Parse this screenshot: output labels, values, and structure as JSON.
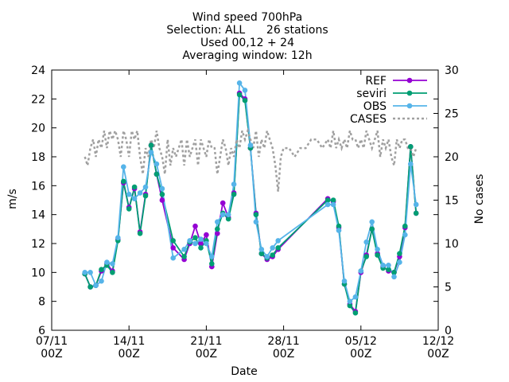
{
  "chart_data": {
    "type": "line",
    "title_lines": [
      "Wind speed 700hPa",
      "Selection: ALL      26 stations",
      "Used 00,12 + 24",
      "Averaging window: 12h"
    ],
    "xlabel": "Date",
    "ylabel": "m/s",
    "y2label": "No cases",
    "xlim": [
      "2011-11-07 00:00",
      "2011-12-12 00:00"
    ],
    "ylim": [
      6,
      24
    ],
    "y2lim": [
      0,
      30
    ],
    "x_ticks": [
      {
        "at": "2011-11-07 00:00",
        "line1": "07/11",
        "line2": "00Z"
      },
      {
        "at": "2011-11-14 00:00",
        "line1": "14/11",
        "line2": "00Z"
      },
      {
        "at": "2011-11-21 00:00",
        "line1": "21/11",
        "line2": "00Z"
      },
      {
        "at": "2011-11-28 00:00",
        "line1": "28/11",
        "line2": "00Z"
      },
      {
        "at": "2011-12-05 00:00",
        "line1": "05/12",
        "line2": "00Z"
      },
      {
        "at": "2011-12-12 00:00",
        "line1": "12/12",
        "line2": "00Z"
      }
    ],
    "y_ticks": [
      "6",
      "8",
      "10",
      "12",
      "14",
      "16",
      "18",
      "20",
      "22",
      "24"
    ],
    "y2_ticks": [
      "0",
      "5",
      "10",
      "15",
      "20",
      "25",
      "30"
    ],
    "legend_position": "top-right",
    "colors": {
      "REF": "#9400d3",
      "seviri": "#009e73",
      "OBS": "#56b4e9",
      "CASES": "#a0a0a0"
    },
    "series": [
      {
        "name": "REF",
        "axis": "y",
        "x": [
          "2011-11-10 00:00",
          "2011-11-10 12:00",
          "2011-11-11 00:00",
          "2011-11-11 12:00",
          "2011-11-12 00:00",
          "2011-11-12 12:00",
          "2011-11-13 00:00",
          "2011-11-13 12:00",
          "2011-11-14 00:00",
          "2011-11-14 12:00",
          "2011-11-15 00:00",
          "2011-11-15 12:00",
          "2011-11-16 00:00",
          "2011-11-16 12:00",
          "2011-11-17 00:00",
          "2011-11-17 12:00",
          "2011-11-18 00:00",
          "2011-11-19 00:00",
          "2011-11-19 12:00",
          "2011-11-20 00:00",
          "2011-11-20 12:00",
          "2011-11-21 00:00",
          "2011-11-21 12:00",
          "2011-11-22 00:00",
          "2011-11-22 12:00",
          "2011-11-23 00:00",
          "2011-11-23 12:00",
          "2011-11-24 00:00",
          "2011-11-24 12:00",
          "2011-11-25 00:00",
          "2011-11-25 12:00",
          "2011-11-26 00:00",
          "2011-11-26 12:00",
          "2011-11-27 00:00",
          "2011-11-27 12:00",
          "2011-11-28 00:00",
          "2011-11-28 12:00",
          "2011-12-02 00:00",
          "2011-12-02 12:00",
          "2011-12-03 00:00",
          "2011-12-03 12:00",
          "2011-12-04 00:00",
          "2011-12-04 12:00",
          "2011-12-05 00:00",
          "2011-12-05 12:00",
          "2011-12-06 00:00",
          "2011-12-06 12:00",
          "2011-12-07 00:00",
          "2011-12-07 12:00",
          "2011-12-08 00:00",
          "2011-12-08 12:00",
          "2011-12-09 00:00",
          "2011-12-09 12:00",
          "2011-12-10 00:00",
          "2011-12-10 12:00"
        ],
        "values": [
          9.9,
          9.0,
          9.1,
          10.1,
          10.6,
          10.1,
          12.3,
          16.2,
          14.5,
          15.8,
          12.8,
          15.4,
          18.8,
          16.8,
          15.0,
          null,
          11.7,
          10.9,
          12.0,
          13.2,
          12.0,
          12.6,
          10.4,
          12.7,
          14.8,
          13.8,
          15.5,
          22.4,
          22.0,
          18.6,
          14.1,
          11.3,
          10.9,
          11.1,
          11.6,
          null,
          null,
          15.1,
          14.9,
          13.1,
          9.2,
          7.8,
          7.3,
          10.0,
          11.2,
          13.0,
          11.3,
          10.4,
          10.1,
          10.0,
          11.1,
          13.1,
          18.7,
          14.1,
          null
        ]
      },
      {
        "name": "seviri",
        "axis": "y",
        "x": [
          "2011-11-10 00:00",
          "2011-11-10 12:00",
          "2011-11-11 00:00",
          "2011-11-11 12:00",
          "2011-11-12 00:00",
          "2011-11-12 12:00",
          "2011-11-13 00:00",
          "2011-11-13 12:00",
          "2011-11-14 00:00",
          "2011-11-14 12:00",
          "2011-11-15 00:00",
          "2011-11-15 12:00",
          "2011-11-16 00:00",
          "2011-11-16 12:00",
          "2011-11-17 00:00",
          "2011-11-17 12:00",
          "2011-11-18 00:00",
          "2011-11-19 00:00",
          "2011-11-19 12:00",
          "2011-11-20 00:00",
          "2011-11-20 12:00",
          "2011-11-21 00:00",
          "2011-11-21 12:00",
          "2011-11-22 00:00",
          "2011-11-22 12:00",
          "2011-11-23 00:00",
          "2011-11-23 12:00",
          "2011-11-24 00:00",
          "2011-11-24 12:00",
          "2011-11-25 00:00",
          "2011-11-25 12:00",
          "2011-11-26 00:00",
          "2011-11-26 12:00",
          "2011-11-27 00:00",
          "2011-11-27 12:00",
          "2011-11-28 00:00",
          "2011-11-28 12:00",
          "2011-12-02 00:00",
          "2011-12-02 12:00",
          "2011-12-03 00:00",
          "2011-12-03 12:00",
          "2011-12-04 00:00",
          "2011-12-04 12:00",
          "2011-12-05 00:00",
          "2011-12-05 12:00",
          "2011-12-06 00:00",
          "2011-12-06 12:00",
          "2011-12-07 00:00",
          "2011-12-07 12:00",
          "2011-12-08 00:00",
          "2011-12-08 12:00",
          "2011-12-09 00:00",
          "2011-12-09 12:00",
          "2011-12-10 00:00",
          "2011-12-10 12:00"
        ],
        "values": [
          9.9,
          9.0,
          9.1,
          10.2,
          10.5,
          10.0,
          12.2,
          16.3,
          14.4,
          15.9,
          12.7,
          15.3,
          18.8,
          16.8,
          15.4,
          null,
          12.2,
          11.1,
          12.1,
          12.4,
          11.7,
          12.2,
          10.6,
          13.0,
          14.1,
          13.7,
          15.4,
          22.3,
          21.9,
          18.6,
          14.0,
          11.3,
          11.0,
          11.2,
          11.7,
          null,
          null,
          15.0,
          15.0,
          13.2,
          9.2,
          7.7,
          7.2,
          10.1,
          11.1,
          13.0,
          11.2,
          10.3,
          10.2,
          10.0,
          11.3,
          13.2,
          18.7,
          14.1,
          null
        ]
      },
      {
        "name": "OBS",
        "axis": "y",
        "x": [
          "2011-11-10 00:00",
          "2011-11-10 12:00",
          "2011-11-11 00:00",
          "2011-11-11 12:00",
          "2011-11-12 00:00",
          "2011-11-12 12:00",
          "2011-11-13 00:00",
          "2011-11-13 12:00",
          "2011-11-14 00:00",
          "2011-11-14 12:00",
          "2011-11-15 00:00",
          "2011-11-15 12:00",
          "2011-11-16 00:00",
          "2011-11-16 12:00",
          "2011-11-17 00:00",
          "2011-11-17 12:00",
          "2011-11-18 00:00",
          "2011-11-19 00:00",
          "2011-11-19 12:00",
          "2011-11-20 00:00",
          "2011-11-20 12:00",
          "2011-11-21 00:00",
          "2011-11-21 12:00",
          "2011-11-22 00:00",
          "2011-11-22 12:00",
          "2011-11-23 00:00",
          "2011-11-23 12:00",
          "2011-11-24 00:00",
          "2011-11-24 12:00",
          "2011-11-25 00:00",
          "2011-11-25 12:00",
          "2011-11-26 00:00",
          "2011-11-26 12:00",
          "2011-11-27 00:00",
          "2011-11-27 12:00",
          "2011-11-28 00:00",
          "2011-11-28 12:00",
          "2011-12-02 00:00",
          "2011-12-02 12:00",
          "2011-12-03 00:00",
          "2011-12-03 12:00",
          "2011-12-04 00:00",
          "2011-12-04 12:00",
          "2011-12-05 00:00",
          "2011-12-05 12:00",
          "2011-12-06 00:00",
          "2011-12-06 12:00",
          "2011-12-07 00:00",
          "2011-12-07 12:00",
          "2011-12-08 00:00",
          "2011-12-08 12:00",
          "2011-12-09 00:00",
          "2011-12-09 12:00",
          "2011-12-10 00:00",
          "2011-12-10 12:00"
        ],
        "values": [
          10.0,
          10.0,
          9.1,
          9.4,
          10.7,
          10.6,
          12.4,
          17.3,
          15.4,
          15.1,
          15.5,
          15.9,
          18.3,
          17.5,
          15.8,
          null,
          11.0,
          11.6,
          12.2,
          12.0,
          12.3,
          12.0,
          11.1,
          13.5,
          14.0,
          14.0,
          16.1,
          23.1,
          22.6,
          18.8,
          13.5,
          11.6,
          11.1,
          11.7,
          12.2,
          null,
          null,
          14.7,
          14.7,
          12.9,
          9.4,
          8.0,
          8.3,
          10.1,
          12.1,
          13.5,
          11.6,
          10.5,
          10.5,
          9.7,
          10.7,
          12.6,
          17.5,
          14.7,
          null
        ]
      },
      {
        "name": "CASES",
        "axis": "y2",
        "dashed": true,
        "x": [
          "2011-11-10 00:00",
          "2011-11-10 06:00",
          "2011-11-10 12:00",
          "2011-11-10 18:00",
          "2011-11-11 00:00",
          "2011-11-11 06:00",
          "2011-11-11 12:00",
          "2011-11-11 18:00",
          "2011-11-12 00:00",
          "2011-11-12 06:00",
          "2011-11-12 12:00",
          "2011-11-12 18:00",
          "2011-11-13 00:00",
          "2011-11-13 06:00",
          "2011-11-13 12:00",
          "2011-11-13 18:00",
          "2011-11-14 00:00",
          "2011-11-14 06:00",
          "2011-11-14 12:00",
          "2011-11-14 18:00",
          "2011-11-15 00:00",
          "2011-11-15 06:00",
          "2011-11-15 12:00",
          "2011-11-15 18:00",
          "2011-11-16 00:00",
          "2011-11-16 06:00",
          "2011-11-16 12:00",
          "2011-11-16 18:00",
          "2011-11-17 00:00",
          "2011-11-17 06:00",
          "2011-11-17 12:00",
          "2011-11-17 18:00",
          "2011-11-18 00:00",
          "2011-11-18 06:00",
          "2011-11-18 12:00",
          "2011-11-18 18:00",
          "2011-11-19 00:00",
          "2011-11-19 06:00",
          "2011-11-19 12:00",
          "2011-11-19 18:00",
          "2011-11-20 00:00",
          "2011-11-20 06:00",
          "2011-11-20 12:00",
          "2011-11-20 18:00",
          "2011-11-21 00:00",
          "2011-11-21 06:00",
          "2011-11-21 12:00",
          "2011-11-21 18:00",
          "2011-11-22 00:00",
          "2011-11-22 06:00",
          "2011-11-22 12:00",
          "2011-11-22 18:00",
          "2011-11-23 00:00",
          "2011-11-23 06:00",
          "2011-11-23 12:00",
          "2011-11-23 18:00",
          "2011-11-24 00:00",
          "2011-11-24 06:00",
          "2011-11-24 12:00",
          "2011-11-24 18:00",
          "2011-11-25 00:00",
          "2011-11-25 06:00",
          "2011-11-25 12:00",
          "2011-11-25 18:00",
          "2011-11-26 00:00",
          "2011-11-26 06:00",
          "2011-11-26 12:00",
          "2011-11-26 18:00",
          "2011-11-27 00:00",
          "2011-11-27 06:00",
          "2011-11-27 12:00",
          "2011-11-27 18:00",
          "2011-11-28 00:00",
          "2011-11-28 12:00",
          "2011-11-29 00:00",
          "2011-11-29 12:00",
          "2011-11-30 00:00",
          "2011-11-30 12:00",
          "2011-12-01 00:00",
          "2011-12-01 12:00",
          "2011-12-02 00:00",
          "2011-12-02 06:00",
          "2011-12-02 12:00",
          "2011-12-02 18:00",
          "2011-12-03 00:00",
          "2011-12-03 06:00",
          "2011-12-03 12:00",
          "2011-12-03 18:00",
          "2011-12-04 00:00",
          "2011-12-04 06:00",
          "2011-12-04 12:00",
          "2011-12-04 18:00",
          "2011-12-05 00:00",
          "2011-12-05 06:00",
          "2011-12-05 12:00",
          "2011-12-05 18:00",
          "2011-12-06 00:00",
          "2011-12-06 06:00",
          "2011-12-06 12:00",
          "2011-12-06 18:00",
          "2011-12-07 00:00",
          "2011-12-07 06:00",
          "2011-12-07 12:00",
          "2011-12-07 18:00",
          "2011-12-08 00:00",
          "2011-12-08 06:00",
          "2011-12-08 12:00",
          "2011-12-08 18:00",
          "2011-12-09 00:00",
          "2011-12-09 06:00",
          "2011-12-09 12:00",
          "2011-12-09 18:00",
          "2011-12-10 00:00"
        ],
        "values": [
          20,
          19,
          21,
          22,
          20,
          22,
          21,
          23,
          21,
          23,
          22,
          23,
          22,
          20,
          23,
          22,
          20,
          23,
          22,
          23,
          20,
          18,
          21,
          20,
          22,
          21,
          23,
          21,
          20,
          18,
          22,
          19,
          21,
          20,
          21,
          22,
          19,
          22,
          20,
          21,
          22,
          19,
          22,
          21,
          20,
          22,
          21,
          21,
          18,
          20,
          22,
          21,
          19,
          21,
          20,
          22,
          21,
          23,
          22,
          23,
          22,
          21,
          23,
          20,
          22,
          21,
          23,
          22,
          21,
          19,
          16,
          20,
          21,
          21,
          20,
          21,
          21,
          22,
          22,
          21,
          22,
          21,
          23,
          21,
          22,
          21,
          22,
          21,
          23,
          22,
          22,
          21,
          22,
          21,
          23,
          22,
          21,
          22,
          23,
          20,
          22,
          21,
          22,
          20,
          19,
          22,
          21,
          22,
          22,
          21,
          21,
          20,
          21
        ]
      }
    ]
  }
}
